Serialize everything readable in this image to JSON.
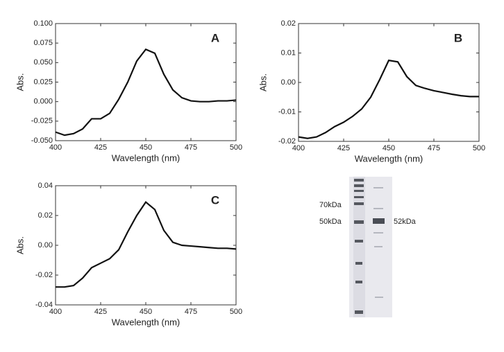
{
  "chart_data": [
    {
      "type": "line",
      "annotation": "A",
      "xlabel": "Wavelength (nm)",
      "ylabel": "Abs.",
      "x": [
        400,
        405,
        410,
        415,
        420,
        425,
        430,
        435,
        440,
        445,
        450,
        455,
        460,
        465,
        470,
        475,
        480,
        485,
        490,
        495,
        500
      ],
      "values": [
        -0.039,
        -0.043,
        -0.041,
        -0.035,
        -0.022,
        -0.022,
        -0.015,
        0.003,
        0.025,
        0.052,
        0.067,
        0.062,
        0.035,
        0.015,
        0.005,
        0.001,
        0.0,
        0.0,
        0.001,
        0.001,
        0.002
      ],
      "color": "#111111",
      "xlim": [
        400,
        500
      ],
      "xticks": [
        400,
        425,
        450,
        475,
        500
      ],
      "ylim": [
        -0.05,
        0.1
      ],
      "yticks": [
        {
          "value": -0.05,
          "label": "-0.050"
        },
        -0.025,
        {
          "value": 0,
          "label": "0.000"
        },
        0.025,
        {
          "value": 0.05,
          "label": "0.050"
        },
        0.075,
        {
          "value": 0.1,
          "label": "0.100"
        }
      ]
    },
    {
      "type": "line",
      "annotation": "B",
      "xlabel": "Wavelength (nm)",
      "ylabel": "Abs.",
      "x": [
        400,
        405,
        410,
        415,
        420,
        425,
        430,
        435,
        440,
        445,
        450,
        455,
        460,
        465,
        470,
        475,
        480,
        485,
        490,
        495,
        500
      ],
      "values": [
        -0.0185,
        -0.019,
        -0.0185,
        -0.017,
        -0.015,
        -0.0135,
        -0.0115,
        -0.009,
        -0.005,
        0.001,
        0.0075,
        0.007,
        0.002,
        -0.001,
        -0.002,
        -0.0028,
        -0.0034,
        -0.004,
        -0.0045,
        -0.0048,
        -0.0048
      ],
      "color": "#111111",
      "xlim": [
        400,
        500
      ],
      "xticks": [
        400,
        425,
        450,
        475,
        500
      ],
      "ylim": [
        -0.02,
        0.02
      ],
      "yticks": [
        -0.02,
        -0.01,
        {
          "value": 0,
          "label": "0.00"
        },
        0.01,
        0.02
      ]
    },
    {
      "type": "line",
      "annotation": "C",
      "xlabel": "Wavelength (nm)",
      "ylabel": "Abs.",
      "x": [
        400,
        405,
        410,
        415,
        420,
        425,
        430,
        435,
        440,
        445,
        450,
        455,
        460,
        465,
        470,
        475,
        480,
        485,
        490,
        495,
        500
      ],
      "values": [
        -0.028,
        -0.028,
        -0.027,
        -0.022,
        -0.015,
        -0.012,
        -0.009,
        -0.003,
        0.009,
        0.02,
        0.029,
        0.024,
        0.01,
        0.002,
        0.0,
        -0.0005,
        -0.001,
        -0.0015,
        -0.002,
        -0.002,
        -0.0025
      ],
      "color": "#111111",
      "xlim": [
        400,
        500
      ],
      "xticks": [
        400,
        425,
        450,
        475,
        500
      ],
      "ylim": [
        -0.04,
        0.04
      ],
      "yticks": [
        -0.04,
        -0.02,
        {
          "value": 0,
          "label": "0.00"
        },
        0.02,
        0.04
      ]
    }
  ],
  "gel": {
    "marker_labels": [
      "70kDa",
      "50kDa"
    ],
    "band_label": "52kDa"
  }
}
